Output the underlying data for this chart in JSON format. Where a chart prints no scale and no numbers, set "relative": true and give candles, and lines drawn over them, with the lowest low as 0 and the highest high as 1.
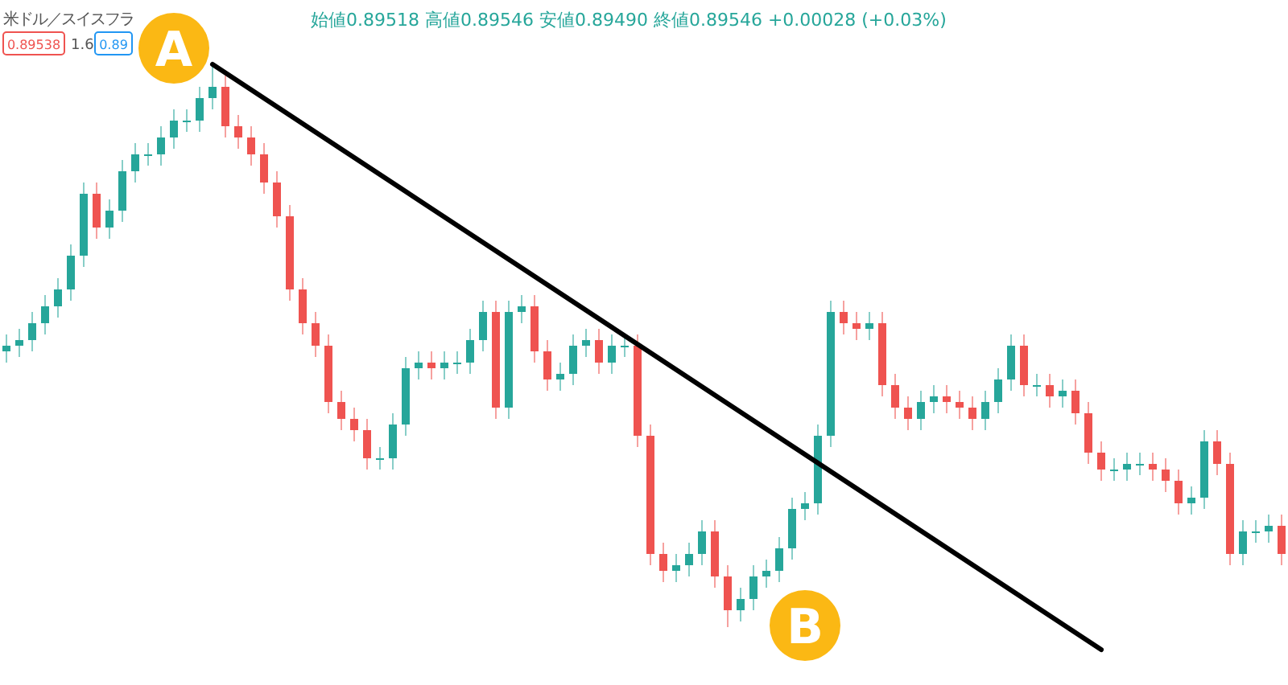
{
  "chart_data": {
    "type": "candlestick",
    "relative": true,
    "title": "米ドル／スイスフラ",
    "subtitle": "始値0.89518 高値0.89546 安値0.89490 終値0.89546 +0.00028 (+0.03%)",
    "annotations": [
      "0.89538",
      "1.6",
      "0.89",
      "A",
      "B"
    ],
    "categories": [
      null,
      null,
      null,
      null,
      null,
      null,
      null,
      null,
      null,
      null,
      null,
      null,
      null,
      null,
      null,
      null,
      null,
      null,
      null,
      null,
      null,
      null,
      null,
      null,
      null,
      null,
      null,
      null,
      null,
      null,
      null,
      null,
      null,
      null,
      null,
      null,
      null,
      null,
      null,
      null,
      null,
      null,
      null,
      null,
      null,
      null,
      null,
      null,
      null,
      null,
      null,
      null,
      null,
      null,
      null,
      null,
      null,
      null,
      null,
      null,
      null,
      null,
      null,
      null,
      null,
      null,
      null,
      null,
      null,
      null,
      null,
      null,
      null,
      null,
      null,
      null,
      null,
      null,
      null,
      null,
      null,
      null,
      null,
      null,
      null,
      null,
      null,
      null,
      null,
      null,
      null,
      null,
      null,
      null,
      null,
      null,
      null,
      null,
      null,
      null
    ],
    "ohlc": [
      [
        0.49,
        0.52,
        0.47,
        0.5
      ],
      [
        0.5,
        0.53,
        0.48,
        0.51
      ],
      [
        0.51,
        0.56,
        0.49,
        0.54
      ],
      [
        0.54,
        0.59,
        0.52,
        0.57
      ],
      [
        0.57,
        0.62,
        0.55,
        0.6
      ],
      [
        0.6,
        0.68,
        0.58,
        0.66
      ],
      [
        0.66,
        0.79,
        0.64,
        0.77
      ],
      [
        0.77,
        0.79,
        0.69,
        0.71
      ],
      [
        0.71,
        0.76,
        0.69,
        0.74
      ],
      [
        0.74,
        0.83,
        0.72,
        0.81
      ],
      [
        0.81,
        0.86,
        0.79,
        0.84
      ],
      [
        0.84,
        0.86,
        0.82,
        0.84
      ],
      [
        0.84,
        0.89,
        0.82,
        0.87
      ],
      [
        0.87,
        0.92,
        0.85,
        0.9
      ],
      [
        0.9,
        0.92,
        0.88,
        0.9
      ],
      [
        0.9,
        0.96,
        0.88,
        0.94
      ],
      [
        0.94,
        1.0,
        0.92,
        0.96
      ],
      [
        0.96,
        0.98,
        0.87,
        0.89
      ],
      [
        0.89,
        0.91,
        0.85,
        0.87
      ],
      [
        0.87,
        0.89,
        0.82,
        0.84
      ],
      [
        0.84,
        0.86,
        0.77,
        0.79
      ],
      [
        0.79,
        0.81,
        0.71,
        0.73
      ],
      [
        0.73,
        0.75,
        0.58,
        0.6
      ],
      [
        0.6,
        0.62,
        0.52,
        0.54
      ],
      [
        0.54,
        0.56,
        0.48,
        0.5
      ],
      [
        0.5,
        0.52,
        0.38,
        0.4
      ],
      [
        0.4,
        0.42,
        0.35,
        0.37
      ],
      [
        0.37,
        0.39,
        0.33,
        0.35
      ],
      [
        0.35,
        0.37,
        0.28,
        0.3
      ],
      [
        0.3,
        0.32,
        0.28,
        0.3
      ],
      [
        0.3,
        0.38,
        0.28,
        0.36
      ],
      [
        0.36,
        0.48,
        0.34,
        0.46
      ],
      [
        0.46,
        0.49,
        0.44,
        0.47
      ],
      [
        0.47,
        0.49,
        0.44,
        0.46
      ],
      [
        0.46,
        0.49,
        0.44,
        0.47
      ],
      [
        0.47,
        0.49,
        0.45,
        0.47
      ],
      [
        0.47,
        0.53,
        0.45,
        0.51
      ],
      [
        0.51,
        0.58,
        0.49,
        0.56
      ],
      [
        0.56,
        0.58,
        0.37,
        0.39
      ],
      [
        0.39,
        0.58,
        0.37,
        0.56
      ],
      [
        0.56,
        0.59,
        0.54,
        0.57
      ],
      [
        0.57,
        0.59,
        0.47,
        0.49
      ],
      [
        0.49,
        0.51,
        0.42,
        0.44
      ],
      [
        0.44,
        0.47,
        0.42,
        0.45
      ],
      [
        0.45,
        0.52,
        0.43,
        0.5
      ],
      [
        0.5,
        0.53,
        0.48,
        0.51
      ],
      [
        0.51,
        0.53,
        0.45,
        0.47
      ],
      [
        0.47,
        0.52,
        0.45,
        0.5
      ],
      [
        0.5,
        0.52,
        0.48,
        0.5
      ],
      [
        0.5,
        0.52,
        0.32,
        0.34
      ],
      [
        0.34,
        0.36,
        0.11,
        0.13
      ],
      [
        0.13,
        0.15,
        0.08,
        0.1
      ],
      [
        0.1,
        0.13,
        0.08,
        0.11
      ],
      [
        0.11,
        0.15,
        0.09,
        0.13
      ],
      [
        0.13,
        0.19,
        0.11,
        0.17
      ],
      [
        0.17,
        0.19,
        0.07,
        0.09
      ],
      [
        0.09,
        0.11,
        0.0,
        0.03
      ],
      [
        0.03,
        0.07,
        0.01,
        0.05
      ],
      [
        0.05,
        0.11,
        0.03,
        0.09
      ],
      [
        0.09,
        0.12,
        0.07,
        0.1
      ],
      [
        0.1,
        0.16,
        0.08,
        0.14
      ],
      [
        0.14,
        0.23,
        0.12,
        0.21
      ],
      [
        0.21,
        0.24,
        0.19,
        0.22
      ],
      [
        0.22,
        0.36,
        0.2,
        0.34
      ],
      [
        0.34,
        0.58,
        0.32,
        0.56
      ],
      [
        0.56,
        0.58,
        0.52,
        0.54
      ],
      [
        0.54,
        0.56,
        0.51,
        0.53
      ],
      [
        0.53,
        0.56,
        0.51,
        0.54
      ],
      [
        0.54,
        0.56,
        0.41,
        0.43
      ],
      [
        0.43,
        0.45,
        0.37,
        0.39
      ],
      [
        0.39,
        0.41,
        0.35,
        0.37
      ],
      [
        0.37,
        0.42,
        0.35,
        0.4
      ],
      [
        0.4,
        0.43,
        0.38,
        0.41
      ],
      [
        0.41,
        0.43,
        0.38,
        0.4
      ],
      [
        0.4,
        0.42,
        0.37,
        0.39
      ],
      [
        0.39,
        0.41,
        0.35,
        0.37
      ],
      [
        0.37,
        0.42,
        0.35,
        0.4
      ],
      [
        0.4,
        0.46,
        0.38,
        0.44
      ],
      [
        0.44,
        0.52,
        0.42,
        0.5
      ],
      [
        0.5,
        0.52,
        0.41,
        0.43
      ],
      [
        0.43,
        0.45,
        0.41,
        0.43
      ],
      [
        0.43,
        0.45,
        0.39,
        0.41
      ],
      [
        0.41,
        0.44,
        0.39,
        0.42
      ],
      [
        0.42,
        0.44,
        0.36,
        0.38
      ],
      [
        0.38,
        0.4,
        0.29,
        0.31
      ],
      [
        0.31,
        0.33,
        0.26,
        0.28
      ],
      [
        0.28,
        0.3,
        0.26,
        0.28
      ],
      [
        0.28,
        0.31,
        0.26,
        0.29
      ],
      [
        0.29,
        0.31,
        0.27,
        0.29
      ],
      [
        0.29,
        0.31,
        0.26,
        0.28
      ],
      [
        0.28,
        0.3,
        0.24,
        0.26
      ],
      [
        0.26,
        0.28,
        0.2,
        0.22
      ],
      [
        0.22,
        0.25,
        0.2,
        0.23
      ],
      [
        0.23,
        0.35,
        0.21,
        0.33
      ],
      [
        0.33,
        0.35,
        0.27,
        0.29
      ],
      [
        0.29,
        0.31,
        0.11,
        0.13
      ],
      [
        0.13,
        0.19,
        0.11,
        0.17
      ],
      [
        0.17,
        0.19,
        0.15,
        0.17
      ],
      [
        0.17,
        0.2,
        0.15,
        0.18
      ],
      [
        0.18,
        0.2,
        0.11,
        0.13
      ]
    ],
    "series": [
      {
        "type": "line",
        "color": "#000000",
        "values": [
          null,
          null,
          null,
          null,
          null,
          null,
          null,
          null,
          null,
          null,
          null,
          null,
          null,
          null,
          null,
          null,
          1.0,
          null,
          null,
          null,
          null,
          null,
          null,
          null,
          null,
          null,
          null,
          null,
          null,
          null,
          null,
          null,
          null,
          null,
          null,
          null,
          null,
          null,
          null,
          null,
          null,
          null,
          null,
          null,
          null,
          null,
          null,
          null,
          null,
          null,
          null,
          null,
          null,
          null,
          null,
          null,
          null,
          null,
          null,
          null,
          null,
          null,
          null,
          null,
          null,
          null,
          null,
          null,
          null,
          null,
          null,
          null,
          null,
          null,
          null,
          null,
          null,
          null,
          null,
          null,
          null,
          null,
          null,
          null,
          null,
          -0.04,
          null,
          null,
          null,
          null,
          null,
          null,
          null,
          null,
          null,
          null,
          null,
          null,
          null,
          null
        ]
      }
    ]
  }
}
